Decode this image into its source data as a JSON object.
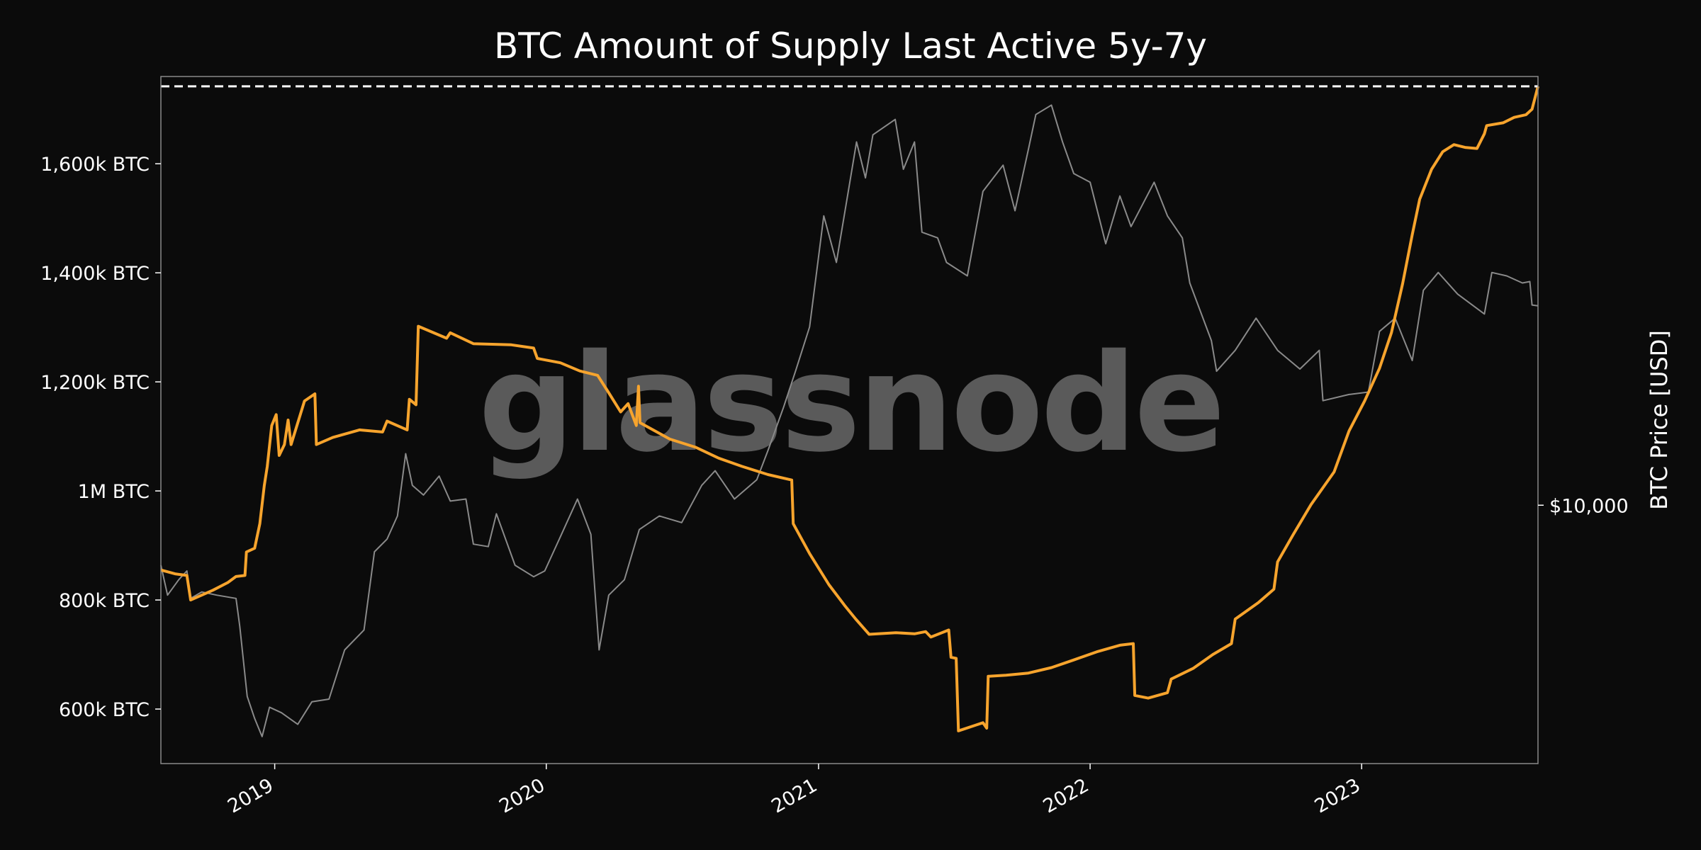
{
  "chart_data": {
    "type": "line",
    "title": "BTC Amount of Supply Last Active 5y-7y",
    "watermark": "glassnode",
    "left_axis": {
      "label": "",
      "ylim": [
        500000,
        1760000
      ],
      "ticks": [
        {
          "value": 600000,
          "label": "600k BTC"
        },
        {
          "value": 800000,
          "label": "800k BTC"
        },
        {
          "value": 1000000,
          "label": "1M BTC"
        },
        {
          "value": 1200000,
          "label": "1,200k BTC"
        },
        {
          "value": 1400000,
          "label": "1,400k BTC"
        },
        {
          "value": 1600000,
          "label": "1,600k BTC"
        }
      ]
    },
    "right_axis": {
      "label": "BTC Price [USD]",
      "scale": "log",
      "ylim": [
        2900,
        78000
      ],
      "ticks": [
        {
          "value": 10000,
          "label": "$10,000"
        }
      ]
    },
    "x_axis": {
      "xlim": [
        "2018-08-01",
        "2023-08-26"
      ],
      "ticks": [
        {
          "value": "2019-01-01",
          "label": "2019"
        },
        {
          "value": "2020-01-01",
          "label": "2020"
        },
        {
          "value": "2021-01-01",
          "label": "2021"
        },
        {
          "value": "2022-01-01",
          "label": "2022"
        },
        {
          "value": "2023-01-01",
          "label": "2023"
        }
      ]
    },
    "reference_line": {
      "value": 1742000,
      "style": "dashed",
      "color": "#ffffff"
    },
    "grid": false,
    "series": [
      {
        "axis": "left",
        "color": "#f7a42d",
        "points": [
          [
            "2018-08-01",
            855000
          ],
          [
            "2018-08-20",
            848000
          ],
          [
            "2018-09-05",
            845000
          ],
          [
            "2018-09-10",
            800000
          ],
          [
            "2018-09-20",
            806000
          ],
          [
            "2018-10-10",
            818000
          ],
          [
            "2018-10-30",
            832000
          ],
          [
            "2018-11-10",
            843000
          ],
          [
            "2018-11-22",
            845000
          ],
          [
            "2018-11-24",
            888000
          ],
          [
            "2018-12-05",
            895000
          ],
          [
            "2018-12-12",
            940000
          ],
          [
            "2018-12-18",
            1010000
          ],
          [
            "2018-12-22",
            1045000
          ],
          [
            "2018-12-28",
            1120000
          ],
          [
            "2019-01-03",
            1140000
          ],
          [
            "2019-01-07",
            1065000
          ],
          [
            "2019-01-14",
            1085000
          ],
          [
            "2019-01-19",
            1130000
          ],
          [
            "2019-01-23",
            1085000
          ],
          [
            "2019-02-10",
            1165000
          ],
          [
            "2019-02-24",
            1178000
          ],
          [
            "2019-02-26",
            1085000
          ],
          [
            "2019-03-20",
            1098000
          ],
          [
            "2019-04-25",
            1112000
          ],
          [
            "2019-05-26",
            1108000
          ],
          [
            "2019-06-01",
            1128000
          ],
          [
            "2019-06-28",
            1112000
          ],
          [
            "2019-07-01",
            1168000
          ],
          [
            "2019-07-10",
            1158000
          ],
          [
            "2019-07-13",
            1302000
          ],
          [
            "2019-08-20",
            1280000
          ],
          [
            "2019-08-25",
            1290000
          ],
          [
            "2019-09-25",
            1270000
          ],
          [
            "2019-11-15",
            1268000
          ],
          [
            "2019-12-15",
            1262000
          ],
          [
            "2019-12-20",
            1243000
          ],
          [
            "2020-01-20",
            1235000
          ],
          [
            "2020-02-15",
            1220000
          ],
          [
            "2020-03-10",
            1212000
          ],
          [
            "2020-03-25",
            1180000
          ],
          [
            "2020-04-10",
            1145000
          ],
          [
            "2020-04-20",
            1160000
          ],
          [
            "2020-05-01",
            1120000
          ],
          [
            "2020-05-04",
            1192000
          ],
          [
            "2020-05-06",
            1125000
          ],
          [
            "2020-06-15",
            1095000
          ],
          [
            "2020-07-20",
            1080000
          ],
          [
            "2020-08-20",
            1060000
          ],
          [
            "2020-09-20",
            1045000
          ],
          [
            "2020-10-25",
            1030000
          ],
          [
            "2020-11-26",
            1020000
          ],
          [
            "2020-11-28",
            940000
          ],
          [
            "2020-12-20",
            885000
          ],
          [
            "2021-01-15",
            828000
          ],
          [
            "2021-02-05",
            790000
          ],
          [
            "2021-02-20",
            765000
          ],
          [
            "2021-03-10",
            737000
          ],
          [
            "2021-04-15",
            740000
          ],
          [
            "2021-05-10",
            738000
          ],
          [
            "2021-05-25",
            742000
          ],
          [
            "2021-06-01",
            732000
          ],
          [
            "2021-06-25",
            745000
          ],
          [
            "2021-06-28",
            695000
          ],
          [
            "2021-07-05",
            693000
          ],
          [
            "2021-07-08",
            560000
          ],
          [
            "2021-07-30",
            570000
          ],
          [
            "2021-08-10",
            575000
          ],
          [
            "2021-08-15",
            565000
          ],
          [
            "2021-08-17",
            660000
          ],
          [
            "2021-09-10",
            662000
          ],
          [
            "2021-10-10",
            666000
          ],
          [
            "2021-11-10",
            676000
          ],
          [
            "2021-12-10",
            690000
          ],
          [
            "2022-01-10",
            705000
          ],
          [
            "2022-02-10",
            717000
          ],
          [
            "2022-02-28",
            720000
          ],
          [
            "2022-03-02",
            625000
          ],
          [
            "2022-03-20",
            620000
          ],
          [
            "2022-04-15",
            630000
          ],
          [
            "2022-04-20",
            655000
          ],
          [
            "2022-05-20",
            675000
          ],
          [
            "2022-06-15",
            700000
          ],
          [
            "2022-07-10",
            720000
          ],
          [
            "2022-07-15",
            765000
          ],
          [
            "2022-08-15",
            795000
          ],
          [
            "2022-09-05",
            820000
          ],
          [
            "2022-09-10",
            870000
          ],
          [
            "2022-10-01",
            920000
          ],
          [
            "2022-10-25",
            975000
          ],
          [
            "2022-11-25",
            1035000
          ],
          [
            "2022-12-15",
            1110000
          ],
          [
            "2023-01-05",
            1165000
          ],
          [
            "2023-01-25",
            1225000
          ],
          [
            "2023-02-10",
            1290000
          ],
          [
            "2023-02-25",
            1380000
          ],
          [
            "2023-03-10",
            1470000
          ],
          [
            "2023-03-20",
            1535000
          ],
          [
            "2023-04-05",
            1590000
          ],
          [
            "2023-04-20",
            1622000
          ],
          [
            "2023-05-05",
            1635000
          ],
          [
            "2023-05-20",
            1630000
          ],
          [
            "2023-06-05",
            1628000
          ],
          [
            "2023-06-15",
            1655000
          ],
          [
            "2023-06-18",
            1670000
          ],
          [
            "2023-07-10",
            1675000
          ],
          [
            "2023-07-25",
            1685000
          ],
          [
            "2023-08-10",
            1690000
          ],
          [
            "2023-08-18",
            1700000
          ],
          [
            "2023-08-26",
            1742000
          ]
        ]
      },
      {
        "axis": "right",
        "color": "#8a8a8a",
        "points": [
          [
            "2018-08-01",
            7500
          ],
          [
            "2018-08-10",
            6500
          ],
          [
            "2018-08-25",
            7000
          ],
          [
            "2018-09-05",
            7300
          ],
          [
            "2018-09-10",
            6400
          ],
          [
            "2018-09-25",
            6600
          ],
          [
            "2018-10-15",
            6500
          ],
          [
            "2018-11-10",
            6400
          ],
          [
            "2018-11-15",
            5600
          ],
          [
            "2018-11-25",
            4000
          ],
          [
            "2018-12-05",
            3600
          ],
          [
            "2018-12-15",
            3300
          ],
          [
            "2018-12-25",
            3800
          ],
          [
            "2019-01-10",
            3700
          ],
          [
            "2019-02-01",
            3500
          ],
          [
            "2019-02-20",
            3900
          ],
          [
            "2019-03-15",
            3950
          ],
          [
            "2019-04-05",
            5000
          ],
          [
            "2019-05-01",
            5500
          ],
          [
            "2019-05-15",
            8000
          ],
          [
            "2019-06-01",
            8500
          ],
          [
            "2019-06-15",
            9500
          ],
          [
            "2019-06-26",
            12800
          ],
          [
            "2019-07-05",
            11000
          ],
          [
            "2019-07-20",
            10500
          ],
          [
            "2019-08-10",
            11500
          ],
          [
            "2019-08-25",
            10200
          ],
          [
            "2019-09-15",
            10300
          ],
          [
            "2019-09-25",
            8300
          ],
          [
            "2019-10-15",
            8200
          ],
          [
            "2019-10-26",
            9600
          ],
          [
            "2019-11-20",
            7500
          ],
          [
            "2019-12-15",
            7100
          ],
          [
            "2019-12-30",
            7300
          ],
          [
            "2020-01-20",
            8600
          ],
          [
            "2020-02-12",
            10300
          ],
          [
            "2020-03-01",
            8700
          ],
          [
            "2020-03-12",
            5000
          ],
          [
            "2020-03-25",
            6500
          ],
          [
            "2020-04-15",
            7000
          ],
          [
            "2020-05-05",
            8900
          ],
          [
            "2020-06-01",
            9500
          ],
          [
            "2020-07-01",
            9200
          ],
          [
            "2020-07-28",
            11000
          ],
          [
            "2020-08-15",
            11800
          ],
          [
            "2020-09-10",
            10300
          ],
          [
            "2020-10-10",
            11300
          ],
          [
            "2020-10-25",
            13000
          ],
          [
            "2020-11-15",
            16000
          ],
          [
            "2020-12-01",
            19000
          ],
          [
            "2020-12-20",
            23500
          ],
          [
            "2021-01-08",
            40000
          ],
          [
            "2021-01-25",
            32000
          ],
          [
            "2021-02-10",
            45000
          ],
          [
            "2021-02-21",
            57000
          ],
          [
            "2021-03-05",
            48000
          ],
          [
            "2021-03-15",
            59000
          ],
          [
            "2021-04-14",
            63500
          ],
          [
            "2021-04-25",
            50000
          ],
          [
            "2021-05-10",
            57000
          ],
          [
            "2021-05-20",
            37000
          ],
          [
            "2021-06-10",
            36000
          ],
          [
            "2021-06-22",
            32000
          ],
          [
            "2021-07-20",
            30000
          ],
          [
            "2021-08-10",
            45000
          ],
          [
            "2021-09-06",
            51000
          ],
          [
            "2021-09-22",
            41000
          ],
          [
            "2021-10-10",
            55000
          ],
          [
            "2021-10-20",
            65000
          ],
          [
            "2021-11-10",
            68000
          ],
          [
            "2021-11-25",
            57000
          ],
          [
            "2021-12-10",
            49000
          ],
          [
            "2022-01-01",
            47000
          ],
          [
            "2022-01-22",
            35000
          ],
          [
            "2022-02-10",
            44000
          ],
          [
            "2022-02-25",
            38000
          ],
          [
            "2022-03-28",
            47000
          ],
          [
            "2022-04-15",
            40000
          ],
          [
            "2022-05-05",
            36000
          ],
          [
            "2022-05-15",
            29000
          ],
          [
            "2022-06-13",
            22000
          ],
          [
            "2022-06-20",
            19000
          ],
          [
            "2022-07-15",
            21000
          ],
          [
            "2022-08-12",
            24500
          ],
          [
            "2022-09-10",
            21000
          ],
          [
            "2022-10-10",
            19200
          ],
          [
            "2022-11-05",
            21000
          ],
          [
            "2022-11-10",
            16500
          ],
          [
            "2022-12-15",
            17000
          ],
          [
            "2023-01-10",
            17200
          ],
          [
            "2023-01-25",
            23000
          ],
          [
            "2023-02-15",
            24500
          ],
          [
            "2023-03-10",
            20000
          ],
          [
            "2023-03-25",
            28000
          ],
          [
            "2023-04-14",
            30500
          ],
          [
            "2023-05-10",
            27500
          ],
          [
            "2023-06-15",
            25000
          ],
          [
            "2023-06-25",
            30500
          ],
          [
            "2023-07-15",
            30000
          ],
          [
            "2023-08-05",
            29000
          ],
          [
            "2023-08-15",
            29200
          ],
          [
            "2023-08-18",
            26100
          ],
          [
            "2023-08-26",
            26000
          ]
        ]
      }
    ]
  }
}
